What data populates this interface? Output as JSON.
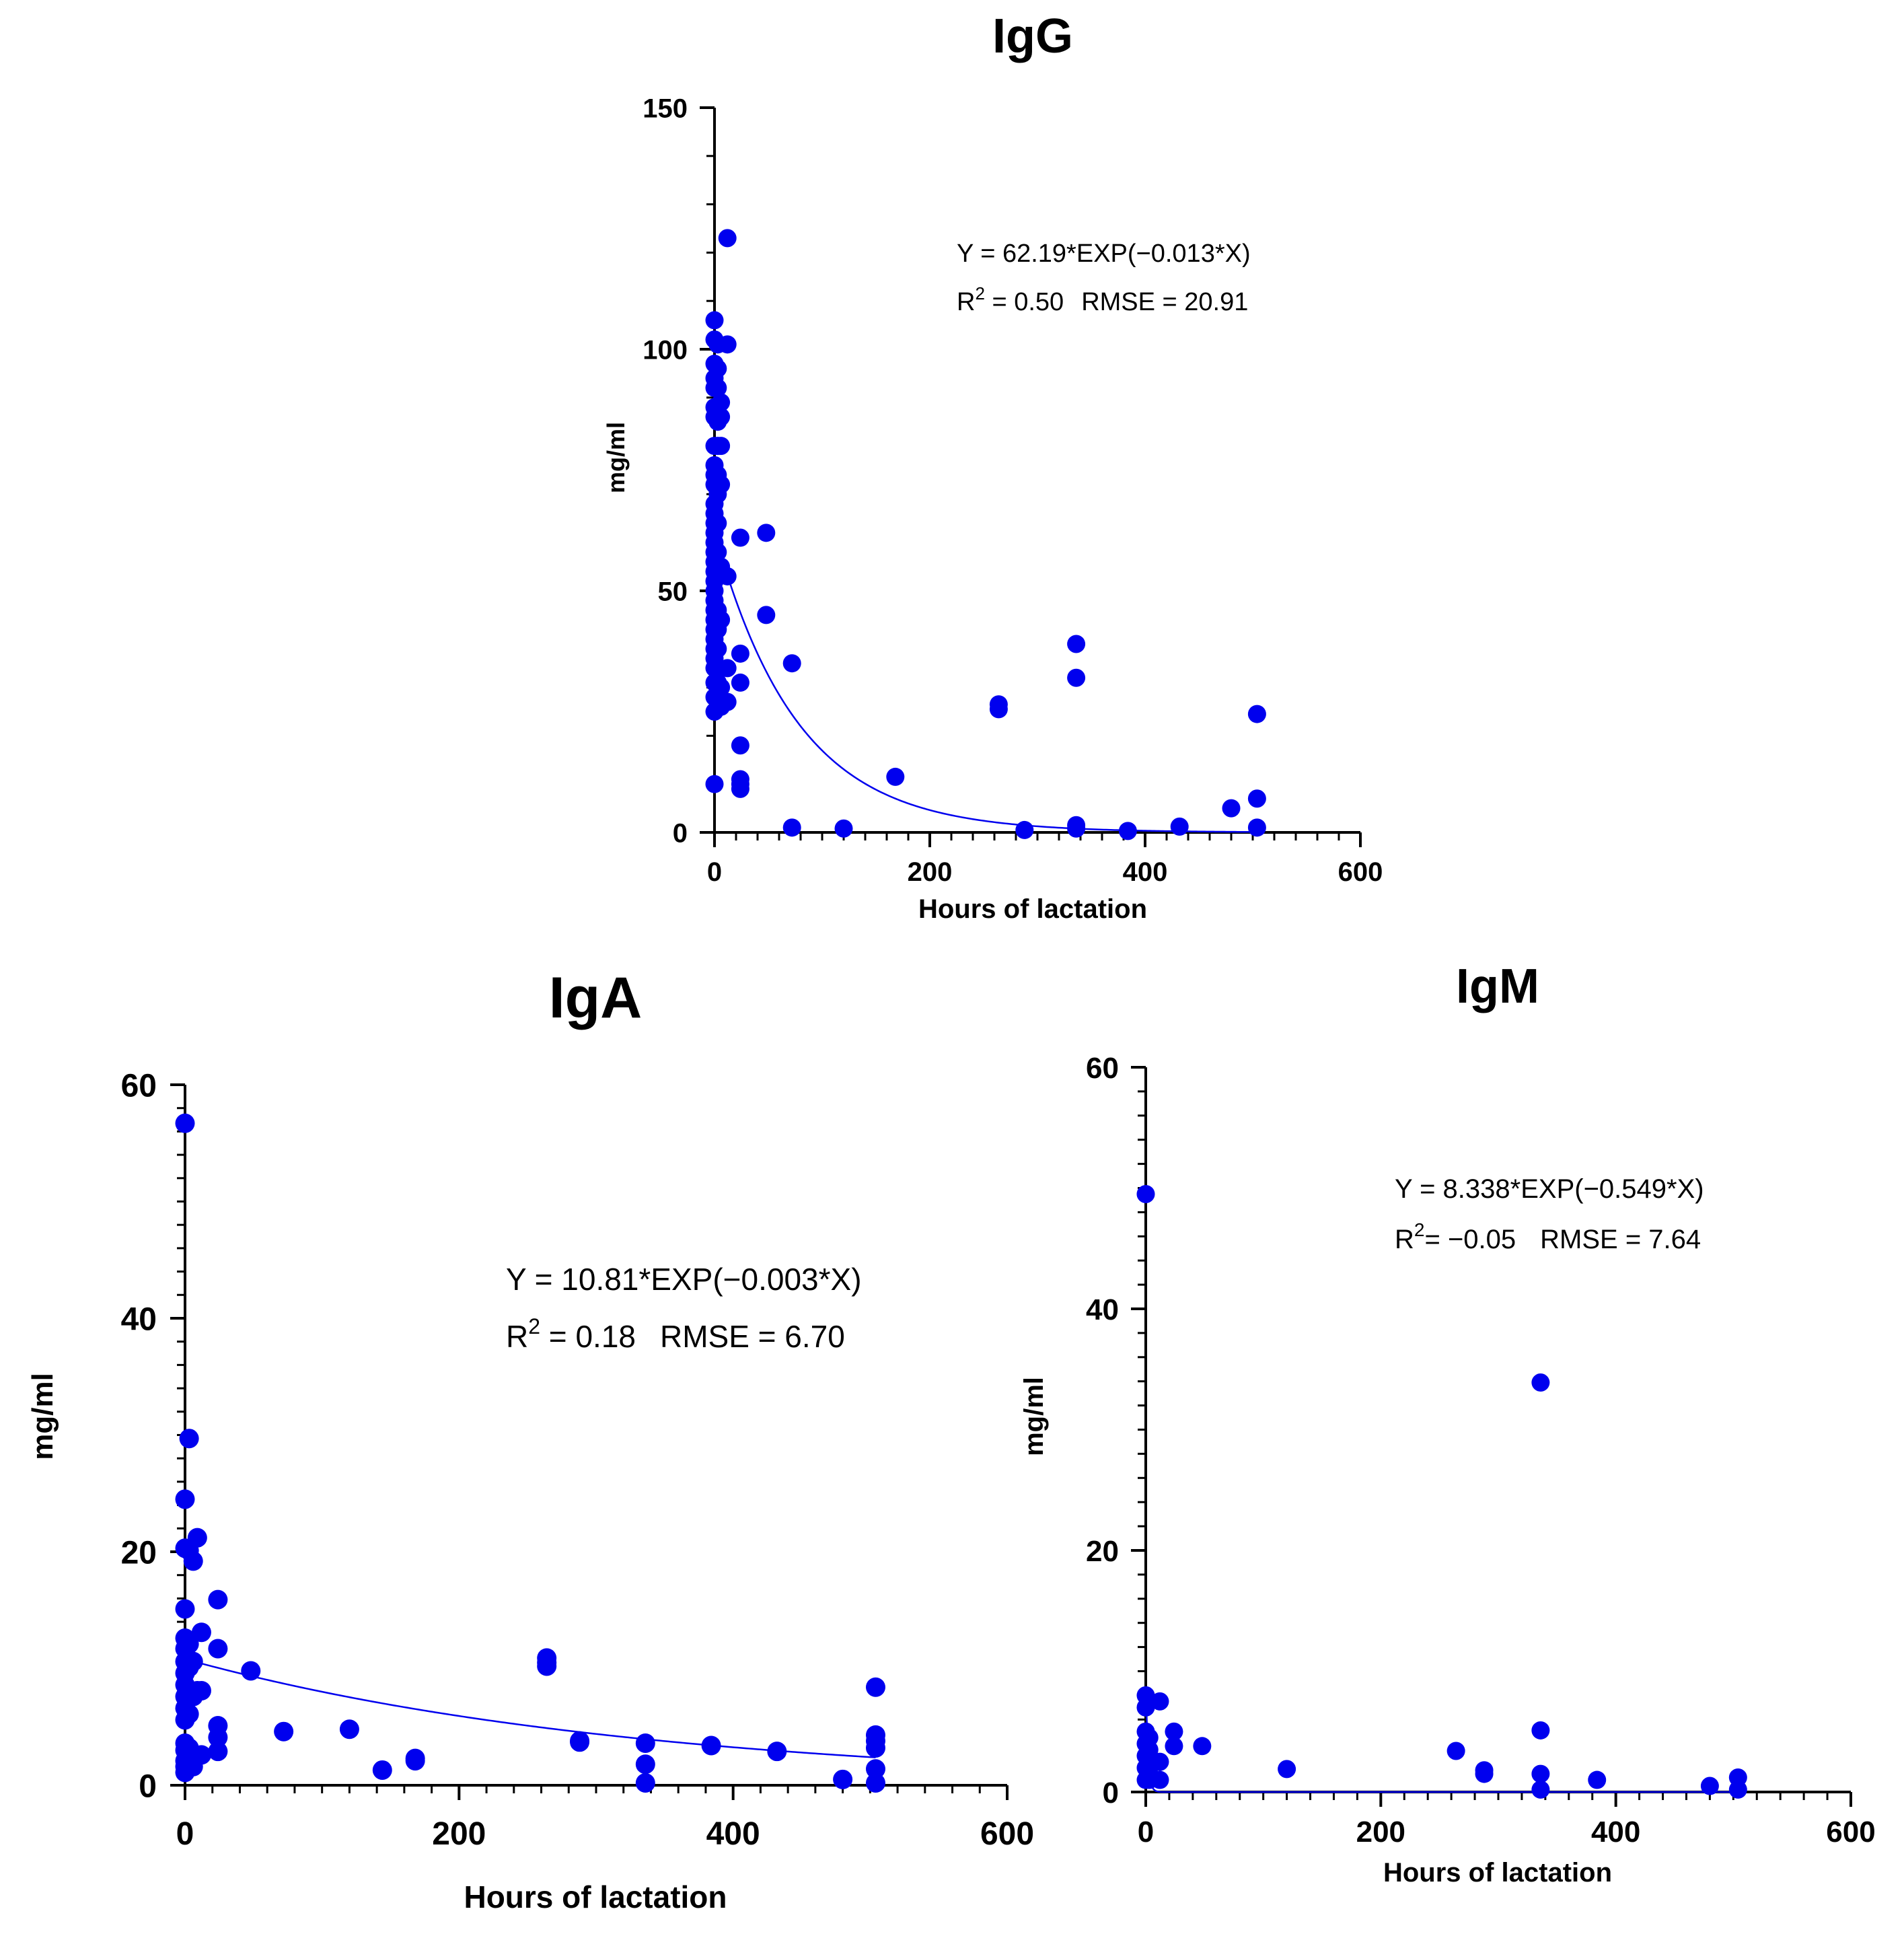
{
  "colors": {
    "points": "#0000ee",
    "fit": "#0000ee",
    "axes": "#000000",
    "background": "#ffffff"
  },
  "chart_data": [
    {
      "id": "igg",
      "type": "scatter",
      "title": "IgG",
      "xlabel": "Hours of lactation",
      "ylabel": "mg/ml",
      "xlim": [
        0,
        600
      ],
      "ylim": [
        0,
        150
      ],
      "xticks": [
        0,
        200,
        400,
        600
      ],
      "yticks": [
        0,
        50,
        100,
        150
      ],
      "x_minor_step": 20,
      "y_minor_step": 10,
      "equation": "Y = 62.19*EXP(−0.013*X)",
      "stats": {
        "r2_prefix": "R",
        "r2_sup": "2",
        "r2_value": " = 0.50",
        "rmse": "RMSE = 20.91"
      },
      "fit": {
        "a": 62.19,
        "b": -0.013,
        "x_start": 12,
        "x_end": 500
      },
      "points": [
        [
          0,
          106
        ],
        [
          0,
          102
        ],
        [
          0,
          97
        ],
        [
          0,
          94
        ],
        [
          0,
          92
        ],
        [
          0,
          88
        ],
        [
          0,
          86
        ],
        [
          0,
          80
        ],
        [
          0,
          76
        ],
        [
          0,
          74
        ],
        [
          0,
          72
        ],
        [
          0,
          68
        ],
        [
          0,
          66
        ],
        [
          0,
          64
        ],
        [
          0,
          62
        ],
        [
          0,
          60
        ],
        [
          0,
          58
        ],
        [
          0,
          56
        ],
        [
          0,
          54
        ],
        [
          0,
          52
        ],
        [
          0,
          50
        ],
        [
          0,
          48
        ],
        [
          0,
          46
        ],
        [
          0,
          44
        ],
        [
          0,
          42
        ],
        [
          0,
          40
        ],
        [
          0,
          38
        ],
        [
          0,
          36
        ],
        [
          0,
          34
        ],
        [
          0,
          31
        ],
        [
          0,
          28
        ],
        [
          0,
          25
        ],
        [
          0,
          10
        ],
        [
          3,
          101
        ],
        [
          3,
          96
        ],
        [
          3,
          92
        ],
        [
          3,
          88
        ],
        [
          3,
          85
        ],
        [
          3,
          80
        ],
        [
          3,
          74
        ],
        [
          3,
          70
        ],
        [
          3,
          64
        ],
        [
          3,
          58
        ],
        [
          3,
          55
        ],
        [
          3,
          46
        ],
        [
          3,
          42
        ],
        [
          3,
          38
        ],
        [
          3,
          31
        ],
        [
          3,
          26
        ],
        [
          6,
          89
        ],
        [
          6,
          86
        ],
        [
          6,
          80
        ],
        [
          6,
          72
        ],
        [
          6,
          55
        ],
        [
          6,
          44
        ],
        [
          6,
          30
        ],
        [
          6,
          26
        ],
        [
          12,
          123
        ],
        [
          12,
          101
        ],
        [
          12,
          53
        ],
        [
          12,
          34
        ],
        [
          12,
          27
        ],
        [
          24,
          61
        ],
        [
          24,
          37
        ],
        [
          24,
          31
        ],
        [
          24,
          18
        ],
        [
          24,
          11
        ],
        [
          24,
          10
        ],
        [
          24,
          9
        ],
        [
          48,
          62
        ],
        [
          48,
          45
        ],
        [
          72,
          35
        ],
        [
          72,
          1
        ],
        [
          120,
          0.8
        ],
        [
          168,
          11.5
        ],
        [
          264,
          26.5
        ],
        [
          264,
          25.5
        ],
        [
          288,
          0.5
        ],
        [
          336,
          39
        ],
        [
          336,
          32
        ],
        [
          336,
          1.5
        ],
        [
          336,
          0.8
        ],
        [
          384,
          0.3
        ],
        [
          432,
          1.2
        ],
        [
          480,
          5
        ],
        [
          504,
          24.5
        ],
        [
          504,
          7
        ],
        [
          504,
          1
        ]
      ]
    },
    {
      "id": "iga",
      "type": "scatter",
      "title": "IgA",
      "xlabel": "Hours of lactation",
      "ylabel": "mg/ml",
      "xlim": [
        0,
        600
      ],
      "ylim": [
        0,
        60
      ],
      "xticks": [
        0,
        200,
        400,
        600
      ],
      "yticks": [
        0,
        20,
        40,
        60
      ],
      "x_minor_step": 20,
      "y_minor_step": 2,
      "equation": "Y = 10.81*EXP(−0.003*X)",
      "stats": {
        "r2_prefix": "R",
        "r2_sup": "2",
        "r2_value": " = 0.18",
        "rmse": "RMSE = 6.70"
      },
      "fit": {
        "a": 10.81,
        "b": -0.003,
        "x_start": 0,
        "x_end": 504
      },
      "points": [
        [
          0,
          56.7
        ],
        [
          0,
          24.5
        ],
        [
          0,
          20.3
        ],
        [
          0,
          15.1
        ],
        [
          0,
          12.6
        ],
        [
          0,
          11.7
        ],
        [
          0,
          10.6
        ],
        [
          0,
          9.6
        ],
        [
          0,
          8.6
        ],
        [
          0,
          7.6
        ],
        [
          0,
          6.6
        ],
        [
          0,
          5.6
        ],
        [
          0,
          3.6
        ],
        [
          0,
          3.0
        ],
        [
          0,
          2.1
        ],
        [
          0,
          1.6
        ],
        [
          0,
          1.1
        ],
        [
          3,
          29.7
        ],
        [
          3,
          20.1
        ],
        [
          3,
          12.1
        ],
        [
          3,
          10.1
        ],
        [
          3,
          8.1
        ],
        [
          3,
          6.1
        ],
        [
          3,
          3.2
        ],
        [
          3,
          2.2
        ],
        [
          6,
          19.2
        ],
        [
          6,
          10.6
        ],
        [
          6,
          7.6
        ],
        [
          6,
          1.6
        ],
        [
          9,
          21.2
        ],
        [
          9,
          8.1
        ],
        [
          12,
          13.1
        ],
        [
          12,
          8.1
        ],
        [
          12,
          2.6
        ],
        [
          24,
          15.9
        ],
        [
          24,
          11.7
        ],
        [
          24,
          5.1
        ],
        [
          24,
          4.1
        ],
        [
          24,
          2.9
        ],
        [
          48,
          9.8
        ],
        [
          72,
          4.6
        ],
        [
          120,
          4.8
        ],
        [
          144,
          1.3
        ],
        [
          168,
          2.3
        ],
        [
          168,
          2.1
        ],
        [
          264,
          10.9
        ],
        [
          264,
          10.5
        ],
        [
          264,
          10.2
        ],
        [
          288,
          3.8
        ],
        [
          288,
          3.7
        ],
        [
          336,
          3.6
        ],
        [
          336,
          1.8
        ],
        [
          336,
          0.2
        ],
        [
          384,
          3.4
        ],
        [
          432,
          2.9
        ],
        [
          480,
          0.5
        ],
        [
          504,
          8.4
        ],
        [
          504,
          4.3
        ],
        [
          504,
          3.8
        ],
        [
          504,
          3.2
        ],
        [
          504,
          1.4
        ],
        [
          504,
          0.2
        ]
      ]
    },
    {
      "id": "igm",
      "type": "scatter",
      "title": "IgM",
      "xlabel": "Hours of lactation",
      "ylabel": "mg/ml",
      "xlim": [
        0,
        600
      ],
      "ylim": [
        0,
        60
      ],
      "xticks": [
        0,
        200,
        400,
        600
      ],
      "yticks": [
        0,
        20,
        40,
        60
      ],
      "x_minor_step": 20,
      "y_minor_step": 2,
      "equation": "Y = 8.338*EXP(−0.549*X)",
      "stats": {
        "r2_prefix": "R",
        "r2_sup": "2",
        "r2_value": "= −0.05",
        "rmse": "RMSE = 7.64"
      },
      "fit": {
        "a": 8.338,
        "b": -0.549,
        "x_start": 0,
        "x_end": 504
      },
      "points": [
        [
          0,
          49.5
        ],
        [
          0,
          8
        ],
        [
          0,
          7
        ],
        [
          0,
          5
        ],
        [
          0,
          4
        ],
        [
          0,
          3
        ],
        [
          0,
          2
        ],
        [
          0,
          1
        ],
        [
          3,
          4.5
        ],
        [
          3,
          3.5
        ],
        [
          3,
          2.5
        ],
        [
          3,
          1.5
        ],
        [
          3,
          1
        ],
        [
          12,
          7.5
        ],
        [
          12,
          2.5
        ],
        [
          12,
          1
        ],
        [
          24,
          5
        ],
        [
          24,
          3.8
        ],
        [
          48,
          3.8
        ],
        [
          120,
          1.9
        ],
        [
          264,
          3.4
        ],
        [
          288,
          1.8
        ],
        [
          288,
          1.5
        ],
        [
          336,
          33.9
        ],
        [
          336,
          5.1
        ],
        [
          336,
          1.5
        ],
        [
          336,
          0.2
        ],
        [
          384,
          1
        ],
        [
          480,
          0.5
        ],
        [
          504,
          1.2
        ],
        [
          504,
          0.2
        ]
      ]
    }
  ]
}
